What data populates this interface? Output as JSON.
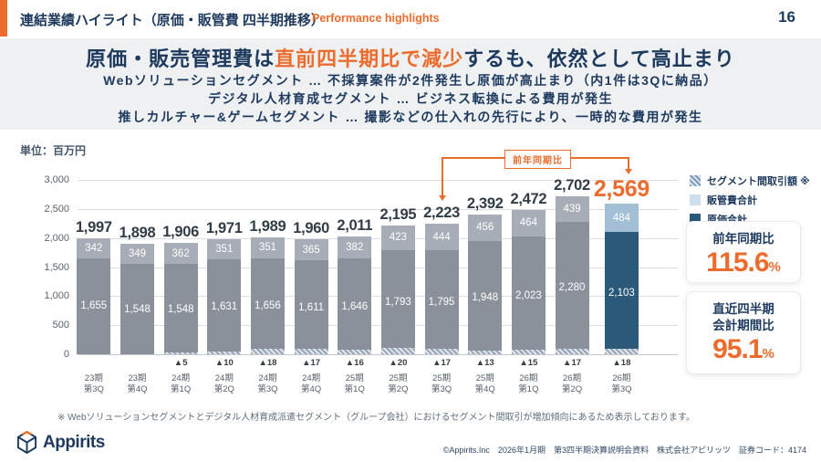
{
  "header": {
    "title": "連結業績ハイライト（原価・販管費 四半期推移）",
    "subtitle_en": "Performance highlights",
    "page_number": "16"
  },
  "highlight": {
    "line1_pre": "原価・販売管理費は",
    "line1_em": "直前四半期比で減少",
    "line1_post": "するも、依然として高止まり",
    "line2": "Webソリューションセグメント … 不採算案件が2件発生し原価が高止まり（内1件は3Qに納品）",
    "line3": "デジタル人材育成セグメント … ビジネス転換による費用が発生",
    "line4": "推しカルチャー&ゲームセグメント … 撮影などの仕入れの先行により、一時的な費用が発生"
  },
  "chart": {
    "unit_label": "単位：百万円",
    "annotation_label": "前年同期比"
  },
  "chart_data": {
    "type": "bar",
    "stacked": true,
    "unit": "百万円",
    "categories": [
      "23期 第3Q",
      "23期 第4Q",
      "24期 第1Q",
      "24期 第2Q",
      "24期 第3Q",
      "24期 第4Q",
      "25期 第1Q",
      "25期 第2Q",
      "25期 第3Q",
      "25期 第4Q",
      "26期 第1Q",
      "26期 第2Q",
      "26期 第3Q"
    ],
    "series": [
      {
        "name": "原価合計",
        "values": [
          1655,
          1548,
          1548,
          1631,
          1656,
          1611,
          1646,
          1793,
          1795,
          1948,
          2023,
          2280,
          2103
        ]
      },
      {
        "name": "販管費合計",
        "values": [
          342,
          349,
          362,
          351,
          351,
          365,
          382,
          423,
          444,
          456,
          464,
          439,
          484
        ]
      },
      {
        "name": "セグメント間取引額 ※",
        "values": [
          null,
          null,
          -5,
          -10,
          -18,
          -17,
          -16,
          -20,
          -17,
          -13,
          -15,
          -17,
          -18
        ]
      }
    ],
    "totals": [
      1997,
      1898,
      1906,
      1971,
      1989,
      1960,
      2011,
      2195,
      2223,
      2392,
      2472,
      2702,
      2569
    ],
    "ylim": [
      0,
      3000
    ],
    "yticks": [
      0,
      500,
      1000,
      1500,
      2000,
      2500,
      3000
    ],
    "grid": true,
    "legend_position": "top-right",
    "highlight_index": 12,
    "annotation": {
      "label": "前年同期比",
      "from_index": 8,
      "to_index": 12
    }
  },
  "legend": {
    "items": [
      {
        "label": "セグメント間取引額 ※",
        "swatch": "hatched"
      },
      {
        "label": "販管費合計",
        "swatch": "light"
      },
      {
        "label": "原価合計",
        "swatch": "dark"
      }
    ]
  },
  "kpi_cards": [
    {
      "label1": "前年同期比",
      "label2": "",
      "value": "115.6",
      "unit": "%"
    },
    {
      "label1": "直近四半期",
      "label2": "会計期間比",
      "value": "95.1",
      "unit": "%"
    }
  ],
  "footnote": "※ Webソリューションセグメントとデジタル人材育成派遣セグメント（グループ会社）におけるセグメント間取引が増加傾向にあるため表示しております。",
  "footer": {
    "logo_text": "Appirits",
    "copyright": "©Appirits.Inc　2026年1月期　第3四半期決算説明会資料　株式会社アピリッツ　証券コード：4174"
  },
  "colors": {
    "navy": "#1d3a5e",
    "orange": "#ec6c2d",
    "band": "#eef0f2",
    "cost-gray": "#8a919b",
    "sga-gray": "#a6adb6",
    "cost-blue": "#2b5979",
    "sga-blue": "#a3bfd6",
    "legend-sga": "#cfe0ec",
    "grid": "#dadee2"
  }
}
